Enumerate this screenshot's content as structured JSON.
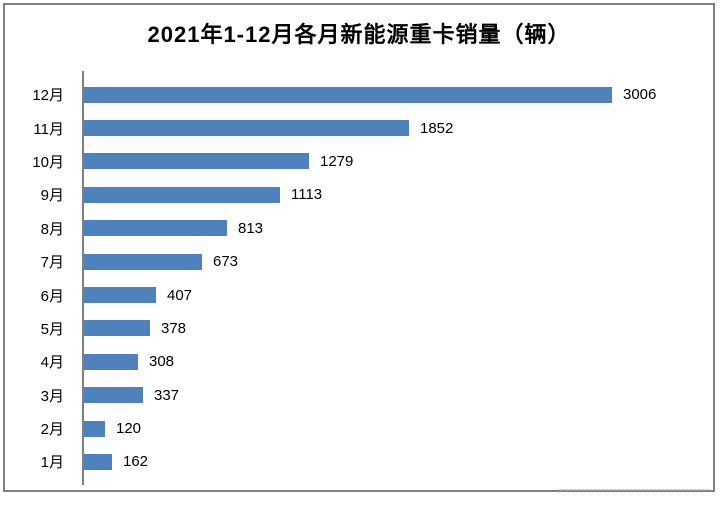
{
  "title": "2021年1-12月各月新能源重卡销量（辆）",
  "colors": {
    "bar": "#4F81BD",
    "axis": "#7F7F7F",
    "frame": "#808080",
    "text": "#000000",
    "background": "#FFFFFF"
  },
  "chart_data": {
    "type": "bar",
    "orientation": "horizontal",
    "title": "2021年1-12月各月新能源重卡销量（辆）",
    "xlabel": "",
    "ylabel": "",
    "categories": [
      "12月",
      "11月",
      "10月",
      "9月",
      "8月",
      "7月",
      "6月",
      "5月",
      "4月",
      "3月",
      "2月",
      "1月"
    ],
    "category_order": "top_to_bottom",
    "values": [
      3006,
      1852,
      1279,
      1113,
      813,
      673,
      407,
      378,
      308,
      337,
      120,
      162
    ],
    "xlim": [
      0,
      3500
    ],
    "data_labels": true,
    "grid": false,
    "legend": false
  }
}
